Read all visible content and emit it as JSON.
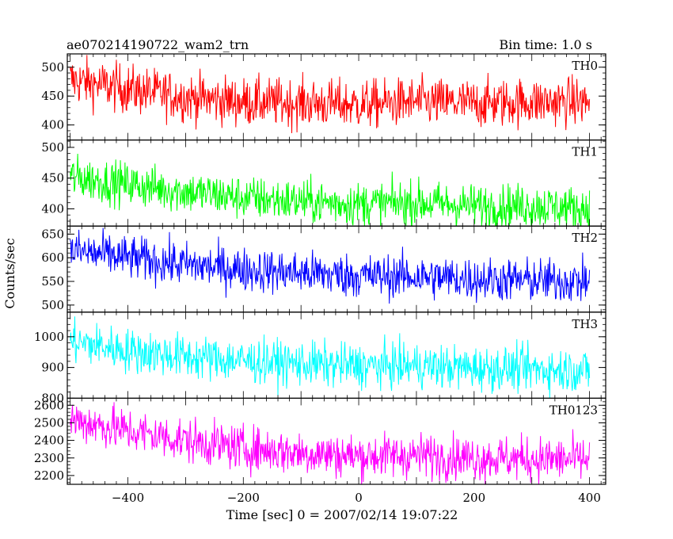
{
  "header": {
    "title": "ae070214190722_wam2_trn",
    "bin_time": "Bin time: 1.0 s"
  },
  "axes": {
    "xlabel": "Time [sec] 0 = 2007/02/14 19:07:22",
    "ylabel": "Counts/sec",
    "xlim": [
      -505,
      428
    ],
    "xticks": [
      -400,
      -200,
      0,
      200,
      400
    ],
    "xtick_labels": [
      "−400",
      "−200",
      "0",
      "200",
      "400"
    ]
  },
  "chart_data": {
    "type": "line",
    "title": "ae070214190722_wam2_trn",
    "xlabel": "Time [sec] 0 = 2007/02/14 19:07:22",
    "ylabel": "Counts/sec",
    "x_range": [
      -500,
      400
    ],
    "bin_time_s": 1.0,
    "grid": false,
    "panels": [
      {
        "name": "TH0",
        "color": "#ff0000",
        "ylim": [
          374,
          523
        ],
        "yticks": [
          400,
          450,
          500
        ],
        "ytick_labels": [
          "400",
          "450",
          "500"
        ],
        "trend": [
          [
            -500,
            478
          ],
          [
            -400,
            462
          ],
          [
            -300,
            448
          ],
          [
            -200,
            440
          ],
          [
            -100,
            438
          ],
          [
            0,
            435
          ],
          [
            100,
            440
          ],
          [
            200,
            437
          ],
          [
            300,
            440
          ],
          [
            400,
            440
          ]
        ],
        "noise_amplitude": 38
      },
      {
        "name": "TH1",
        "color": "#00ff00",
        "ylim": [
          372,
          512
        ],
        "yticks": [
          400,
          450,
          500
        ],
        "ytick_labels": [
          "400",
          "450",
          "500"
        ],
        "trend": [
          [
            -500,
            452
          ],
          [
            -400,
            440
          ],
          [
            -300,
            428
          ],
          [
            -200,
            418
          ],
          [
            -100,
            412
          ],
          [
            0,
            408
          ],
          [
            100,
            410
          ],
          [
            200,
            405
          ],
          [
            300,
            405
          ],
          [
            400,
            400
          ]
        ],
        "noise_amplitude": 32
      },
      {
        "name": "TH2",
        "color": "#0000ff",
        "ylim": [
          485,
          667
        ],
        "yticks": [
          500,
          550,
          600,
          650
        ],
        "ytick_labels": [
          "500",
          "550",
          "600",
          "650"
        ],
        "trend": [
          [
            -500,
            615
          ],
          [
            -400,
            600
          ],
          [
            -300,
            585
          ],
          [
            -200,
            575
          ],
          [
            -100,
            568
          ],
          [
            0,
            562
          ],
          [
            100,
            560
          ],
          [
            200,
            555
          ],
          [
            300,
            552
          ],
          [
            400,
            550
          ]
        ],
        "noise_amplitude": 42
      },
      {
        "name": "TH3",
        "color": "#00ffff",
        "ylim": [
          800,
          1080
        ],
        "yticks": [
          800,
          900,
          1000
        ],
        "ytick_labels": [
          "800",
          "900",
          "1000"
        ],
        "trend": [
          [
            -500,
            985
          ],
          [
            -400,
            955
          ],
          [
            -300,
            935
          ],
          [
            -200,
            922
          ],
          [
            -100,
            912
          ],
          [
            0,
            905
          ],
          [
            100,
            905
          ],
          [
            200,
            898
          ],
          [
            300,
            895
          ],
          [
            400,
            890
          ]
        ],
        "noise_amplitude": 65
      },
      {
        "name": "TH0123",
        "color": "#ff00ff",
        "ylim": [
          2150,
          2640
        ],
        "yticks": [
          2200,
          2300,
          2400,
          2500,
          2600
        ],
        "ytick_labels": [
          "2200",
          "2300",
          "2400",
          "2500",
          "2600"
        ],
        "trend": [
          [
            -500,
            2520
          ],
          [
            -400,
            2455
          ],
          [
            -300,
            2400
          ],
          [
            -200,
            2355
          ],
          [
            -100,
            2330
          ],
          [
            0,
            2310
          ],
          [
            100,
            2315
          ],
          [
            200,
            2300
          ],
          [
            300,
            2295
          ],
          [
            400,
            2290
          ]
        ],
        "noise_amplitude": 115
      }
    ]
  }
}
